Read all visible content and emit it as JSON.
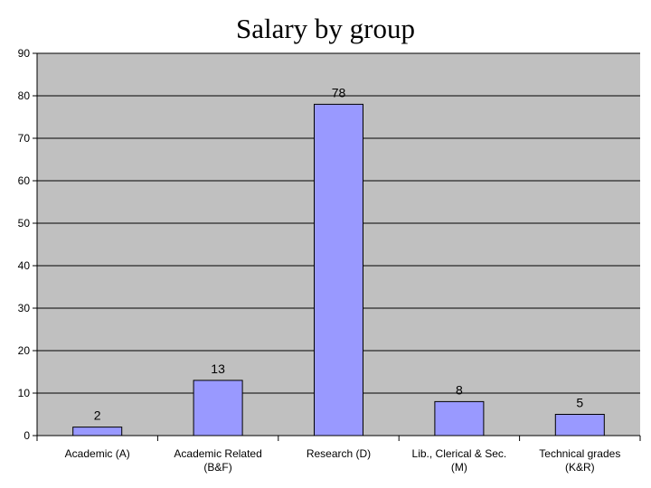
{
  "chart_data": {
    "type": "bar",
    "title": "Salary by group",
    "xlabel": "",
    "ylabel": "",
    "categories": [
      [
        "Academic (A)"
      ],
      [
        "Academic Related",
        "(B&F)"
      ],
      [
        "Research (D)"
      ],
      [
        "Lib., Clerical & Sec.",
        "(M)"
      ],
      [
        "Technical grades",
        "(K&R)"
      ]
    ],
    "values": [
      2,
      13,
      78,
      8,
      5
    ],
    "data_labels": [
      "2",
      "13",
      "78",
      "8",
      "5"
    ],
    "ylim": [
      0,
      90
    ],
    "yticks": [
      0,
      10,
      20,
      30,
      40,
      50,
      60,
      70,
      80,
      90
    ],
    "grid": true,
    "legend": "none",
    "colors": {
      "bar_fill": "#9999ff",
      "bar_stroke": "#000000",
      "plot_background": "#c0c0c0",
      "gridline": "#000000"
    }
  }
}
